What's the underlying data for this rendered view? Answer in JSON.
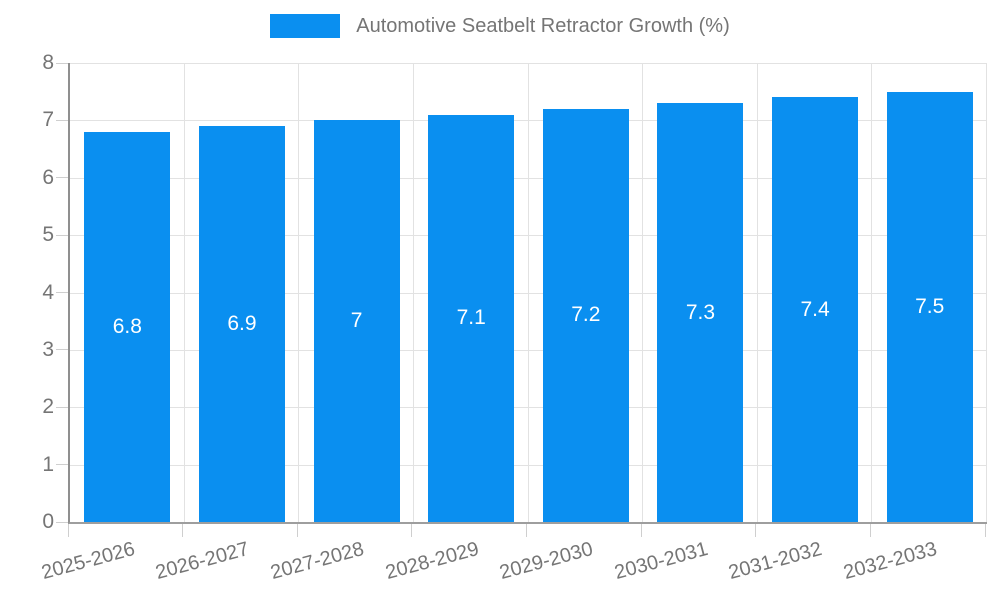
{
  "chart_data": {
    "type": "bar",
    "title": "",
    "legend": {
      "label": "Automotive Seatbelt Retractor Growth (%)",
      "position": "top"
    },
    "categories": [
      "2025-2026",
      "2026-2027",
      "2027-2028",
      "2028-2029",
      "2029-2030",
      "2030-2031",
      "2031-2032",
      "2032-2033"
    ],
    "values": [
      6.8,
      6.9,
      7.0,
      7.1,
      7.2,
      7.3,
      7.4,
      7.5
    ],
    "value_labels": [
      "6.8",
      "6.9",
      "7",
      "7.1",
      "7.2",
      "7.3",
      "7.4",
      "7.5"
    ],
    "ylabel": "",
    "xlabel": "",
    "ylim": [
      0,
      8
    ],
    "y_ticks": [
      0,
      1,
      2,
      3,
      4,
      5,
      6,
      7,
      8
    ],
    "grid": true,
    "colors": {
      "bar": "#0a8ff0",
      "data_label": "#ffffff",
      "axis_text": "#757575",
      "grid_line": "#e2e2e2",
      "axis_line": "#9e9e9e",
      "tick_mark": "#cfcfcf",
      "background": "#ffffff"
    }
  }
}
